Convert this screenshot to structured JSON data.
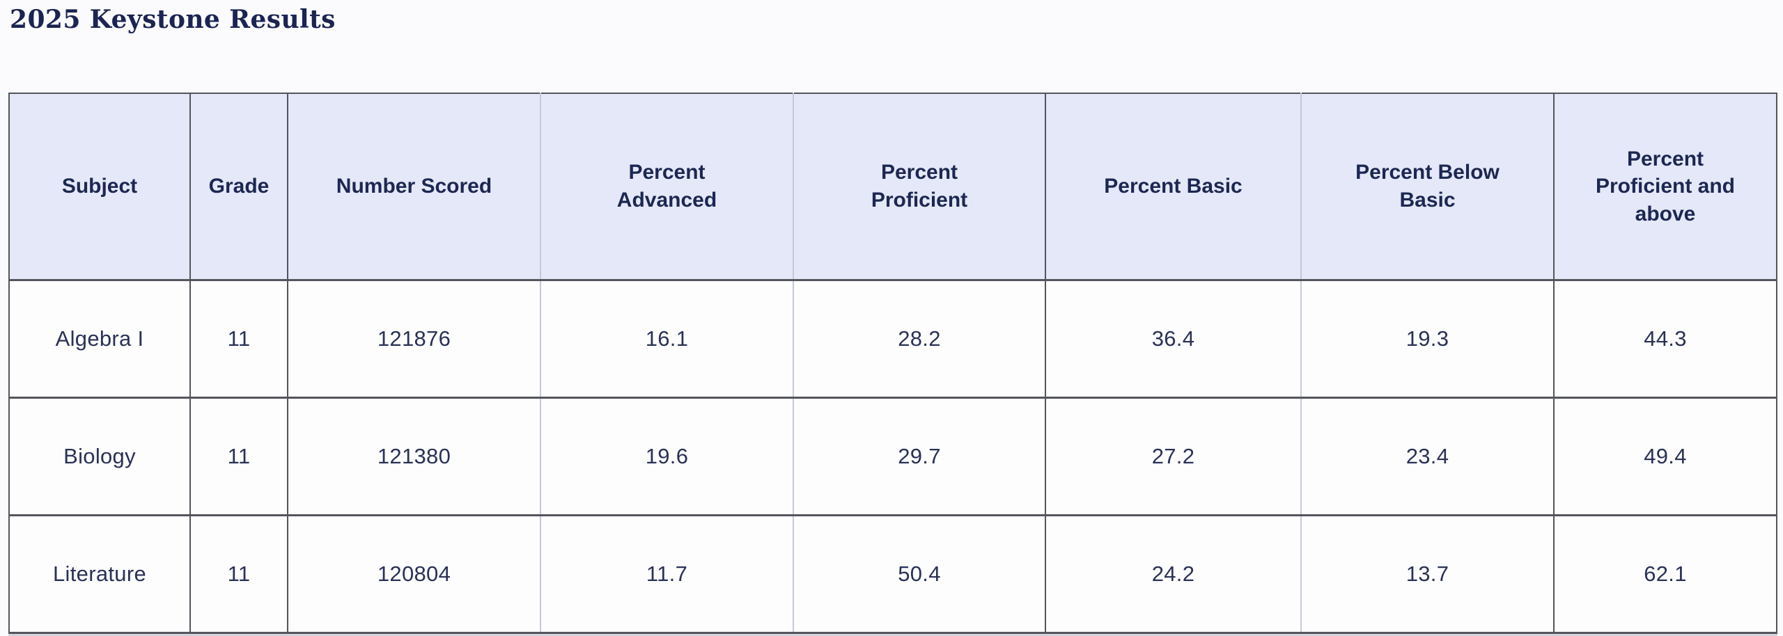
{
  "title": "2025 Keystone Results",
  "table": {
    "headers": [
      "Subject",
      "Grade",
      "Number Scored",
      "Percent Advanced",
      "Percent Proficient",
      "Percent Basic",
      "Percent Below Basic",
      "Percent Proficient and above"
    ],
    "rows": [
      [
        "Algebra I",
        "11",
        "121876",
        "16.1",
        "28.2",
        "36.4",
        "19.3",
        "44.3"
      ],
      [
        "Biology",
        "11",
        "121380",
        "19.6",
        "29.7",
        "27.2",
        "23.4",
        "49.4"
      ],
      [
        "Literature",
        "11",
        "120804",
        "11.7",
        "50.4",
        "24.2",
        "13.7",
        "62.1"
      ]
    ]
  },
  "chart_data": {
    "type": "table",
    "title": "2025 Keystone Results",
    "columns": [
      "Subject",
      "Grade",
      "Number Scored",
      "Percent Advanced",
      "Percent Proficient",
      "Percent Basic",
      "Percent Below Basic",
      "Percent Proficient and above"
    ],
    "rows": [
      {
        "subject": "Algebra I",
        "grade": 11,
        "number_scored": 121876,
        "percent_advanced": 16.1,
        "percent_proficient": 28.2,
        "percent_basic": 36.4,
        "percent_below_basic": 19.3,
        "percent_proficient_and_above": 44.3
      },
      {
        "subject": "Biology",
        "grade": 11,
        "number_scored": 121380,
        "percent_advanced": 19.6,
        "percent_proficient": 29.7,
        "percent_basic": 27.2,
        "percent_below_basic": 23.4,
        "percent_proficient_and_above": 49.4
      },
      {
        "subject": "Literature",
        "grade": 11,
        "number_scored": 120804,
        "percent_advanced": 11.7,
        "percent_proficient": 50.4,
        "percent_basic": 24.2,
        "percent_below_basic": 13.7,
        "percent_proficient_and_above": 62.1
      }
    ]
  },
  "colors": {
    "page_bg": "#fbfbfd",
    "header_bg": "#e4e8f8",
    "cell_bg": "#fdfdfe",
    "title_text": "#1b2452",
    "header_text": "#1c2752",
    "cell_text": "#2a3156",
    "border_dark": "#54555c",
    "border_light": "#c6c8d6"
  }
}
